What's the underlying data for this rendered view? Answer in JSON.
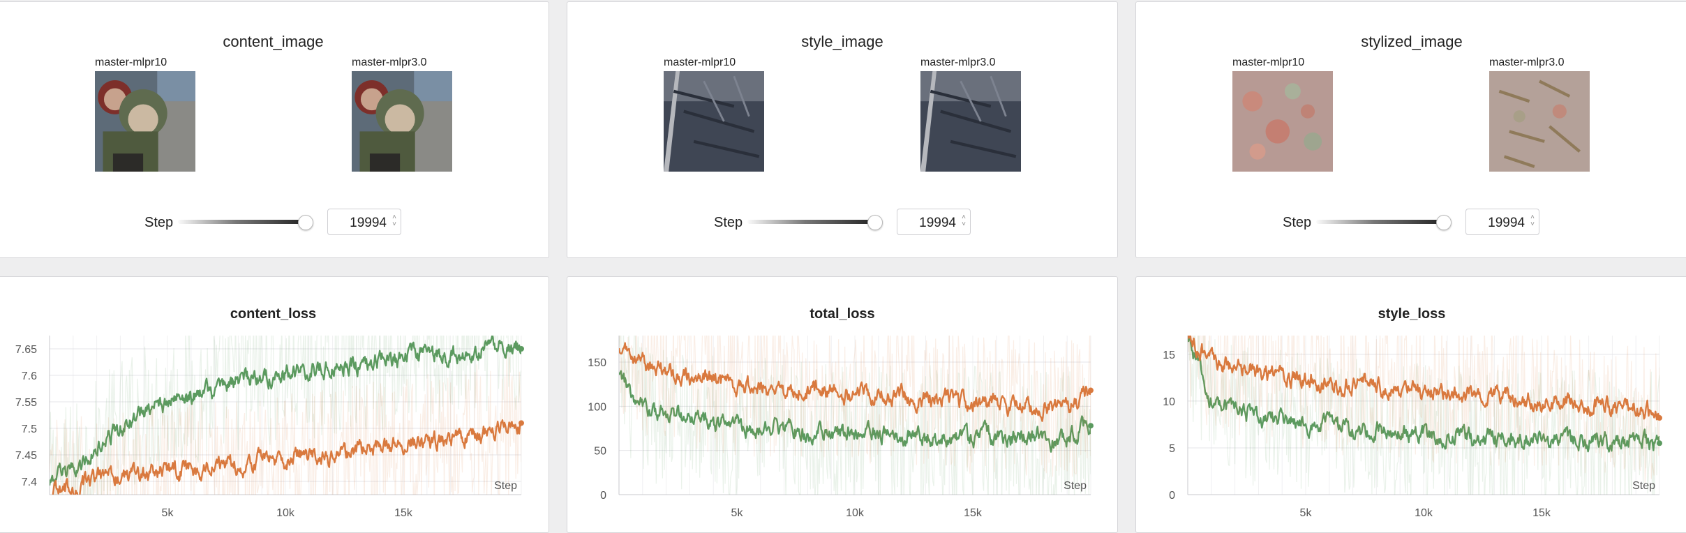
{
  "colors": {
    "series_a": "#5b9a5f",
    "series_b": "#d9793e",
    "panel_bg": "#ffffff",
    "page_bg": "#eeeeef"
  },
  "media_panels": [
    {
      "title": "content_image",
      "runs": [
        {
          "name": "master-mlpr10",
          "image": "content-photo"
        },
        {
          "name": "master-mlpr3.0",
          "image": "content-photo"
        }
      ],
      "step_label": "Step",
      "step_value": "19994"
    },
    {
      "title": "style_image",
      "runs": [
        {
          "name": "master-mlpr10",
          "image": "style-photo"
        },
        {
          "name": "master-mlpr3.0",
          "image": "style-photo"
        }
      ],
      "step_label": "Step",
      "step_value": "19994"
    },
    {
      "title": "stylized_image",
      "runs": [
        {
          "name": "master-mlpr10",
          "image": "stylized-texture"
        },
        {
          "name": "master-mlpr3.0",
          "image": "stylized-texture"
        }
      ],
      "step_label": "Step",
      "step_value": "19994"
    }
  ],
  "chart_data": [
    {
      "type": "line",
      "title": "content_loss",
      "xlabel": "Step",
      "xlim": [
        0,
        20000
      ],
      "ylim": [
        7.375,
        7.675
      ],
      "yticks": [
        7.4,
        7.45,
        7.5,
        7.55,
        7.6,
        7.65
      ],
      "ytick_labels": [
        "7.4",
        "7.45",
        "7.5",
        "7.55",
        "7.6",
        "7.65"
      ],
      "xticks": [
        5000,
        10000,
        15000
      ],
      "xtick_labels": [
        "5k",
        "10k",
        "15k"
      ],
      "grid": true,
      "series": [
        {
          "color": "#5b9a5f",
          "x": [
            0,
            1000,
            2000,
            3000,
            4000,
            5000,
            6000,
            7000,
            8000,
            9000,
            10000,
            11000,
            12000,
            13000,
            14000,
            15000,
            16000,
            17000,
            18000,
            19000,
            20000
          ],
          "y": [
            7.4,
            7.42,
            7.46,
            7.5,
            7.53,
            7.55,
            7.56,
            7.57,
            7.59,
            7.6,
            7.6,
            7.61,
            7.62,
            7.62,
            7.63,
            7.63,
            7.64,
            7.64,
            7.65,
            7.66,
            7.65
          ]
        },
        {
          "color": "#d9793e",
          "x": [
            0,
            1000,
            2000,
            3000,
            4000,
            5000,
            6000,
            7000,
            8000,
            9000,
            10000,
            11000,
            12000,
            13000,
            14000,
            15000,
            16000,
            17000,
            18000,
            19000,
            20000
          ],
          "y": [
            7.38,
            7.39,
            7.4,
            7.41,
            7.41,
            7.42,
            7.42,
            7.43,
            7.43,
            7.44,
            7.44,
            7.45,
            7.45,
            7.46,
            7.46,
            7.47,
            7.48,
            7.48,
            7.49,
            7.5,
            7.51
          ]
        }
      ]
    },
    {
      "type": "line",
      "title": "total_loss",
      "xlabel": "Step",
      "xlim": [
        0,
        20000
      ],
      "ylim": [
        0,
        180
      ],
      "yticks": [
        0,
        50,
        100,
        150
      ],
      "ytick_labels": [
        "0",
        "50",
        "100",
        "150"
      ],
      "xticks": [
        5000,
        10000,
        15000
      ],
      "xtick_labels": [
        "5k",
        "10k",
        "15k"
      ],
      "grid": true,
      "series": [
        {
          "color": "#5b9a5f",
          "x": [
            0,
            1000,
            2000,
            3000,
            4000,
            5000,
            6000,
            7000,
            8000,
            9000,
            10000,
            11000,
            12000,
            13000,
            14000,
            15000,
            16000,
            17000,
            18000,
            19000,
            20000
          ],
          "y": [
            140,
            95,
            90,
            85,
            80,
            78,
            76,
            74,
            72,
            70,
            69,
            68,
            67,
            66,
            66,
            65,
            65,
            64,
            64,
            63,
            78
          ]
        },
        {
          "color": "#d9793e",
          "x": [
            0,
            1000,
            2000,
            3000,
            4000,
            5000,
            6000,
            7000,
            8000,
            9000,
            10000,
            11000,
            12000,
            13000,
            14000,
            15000,
            16000,
            17000,
            18000,
            19000,
            20000
          ],
          "y": [
            170,
            150,
            140,
            132,
            128,
            125,
            122,
            120,
            118,
            116,
            114,
            112,
            110,
            108,
            106,
            104,
            102,
            100,
            98,
            96,
            118
          ]
        }
      ]
    },
    {
      "type": "line",
      "title": "style_loss",
      "xlabel": "Step",
      "xlim": [
        0,
        20000
      ],
      "ylim": [
        0,
        17
      ],
      "yticks": [
        0,
        5,
        10,
        15
      ],
      "ytick_labels": [
        "0",
        "5",
        "10",
        "15"
      ],
      "xticks": [
        5000,
        10000,
        15000
      ],
      "xtick_labels": [
        "5k",
        "10k",
        "15k"
      ],
      "grid": true,
      "series": [
        {
          "color": "#5b9a5f",
          "x": [
            0,
            1000,
            2000,
            3000,
            4000,
            5000,
            6000,
            7000,
            8000,
            9000,
            10000,
            11000,
            12000,
            13000,
            14000,
            15000,
            16000,
            17000,
            18000,
            19000,
            20000
          ],
          "y": [
            17,
            10,
            9,
            8.4,
            8,
            7.6,
            7.3,
            7,
            6.8,
            6.6,
            6.4,
            6.3,
            6.2,
            6.1,
            6,
            5.9,
            5.8,
            5.7,
            5.6,
            5.5,
            5.5
          ]
        },
        {
          "color": "#d9793e",
          "x": [
            0,
            1000,
            2000,
            3000,
            4000,
            5000,
            6000,
            7000,
            8000,
            9000,
            10000,
            11000,
            12000,
            13000,
            14000,
            15000,
            16000,
            17000,
            18000,
            19000,
            20000
          ],
          "y": [
            17,
            14.5,
            13.5,
            13,
            12.5,
            12.2,
            12,
            11.7,
            11.5,
            11.3,
            11.1,
            10.9,
            10.7,
            10.5,
            10.3,
            10.1,
            9.9,
            9.7,
            9.5,
            9.2,
            8.2
          ]
        }
      ]
    }
  ]
}
